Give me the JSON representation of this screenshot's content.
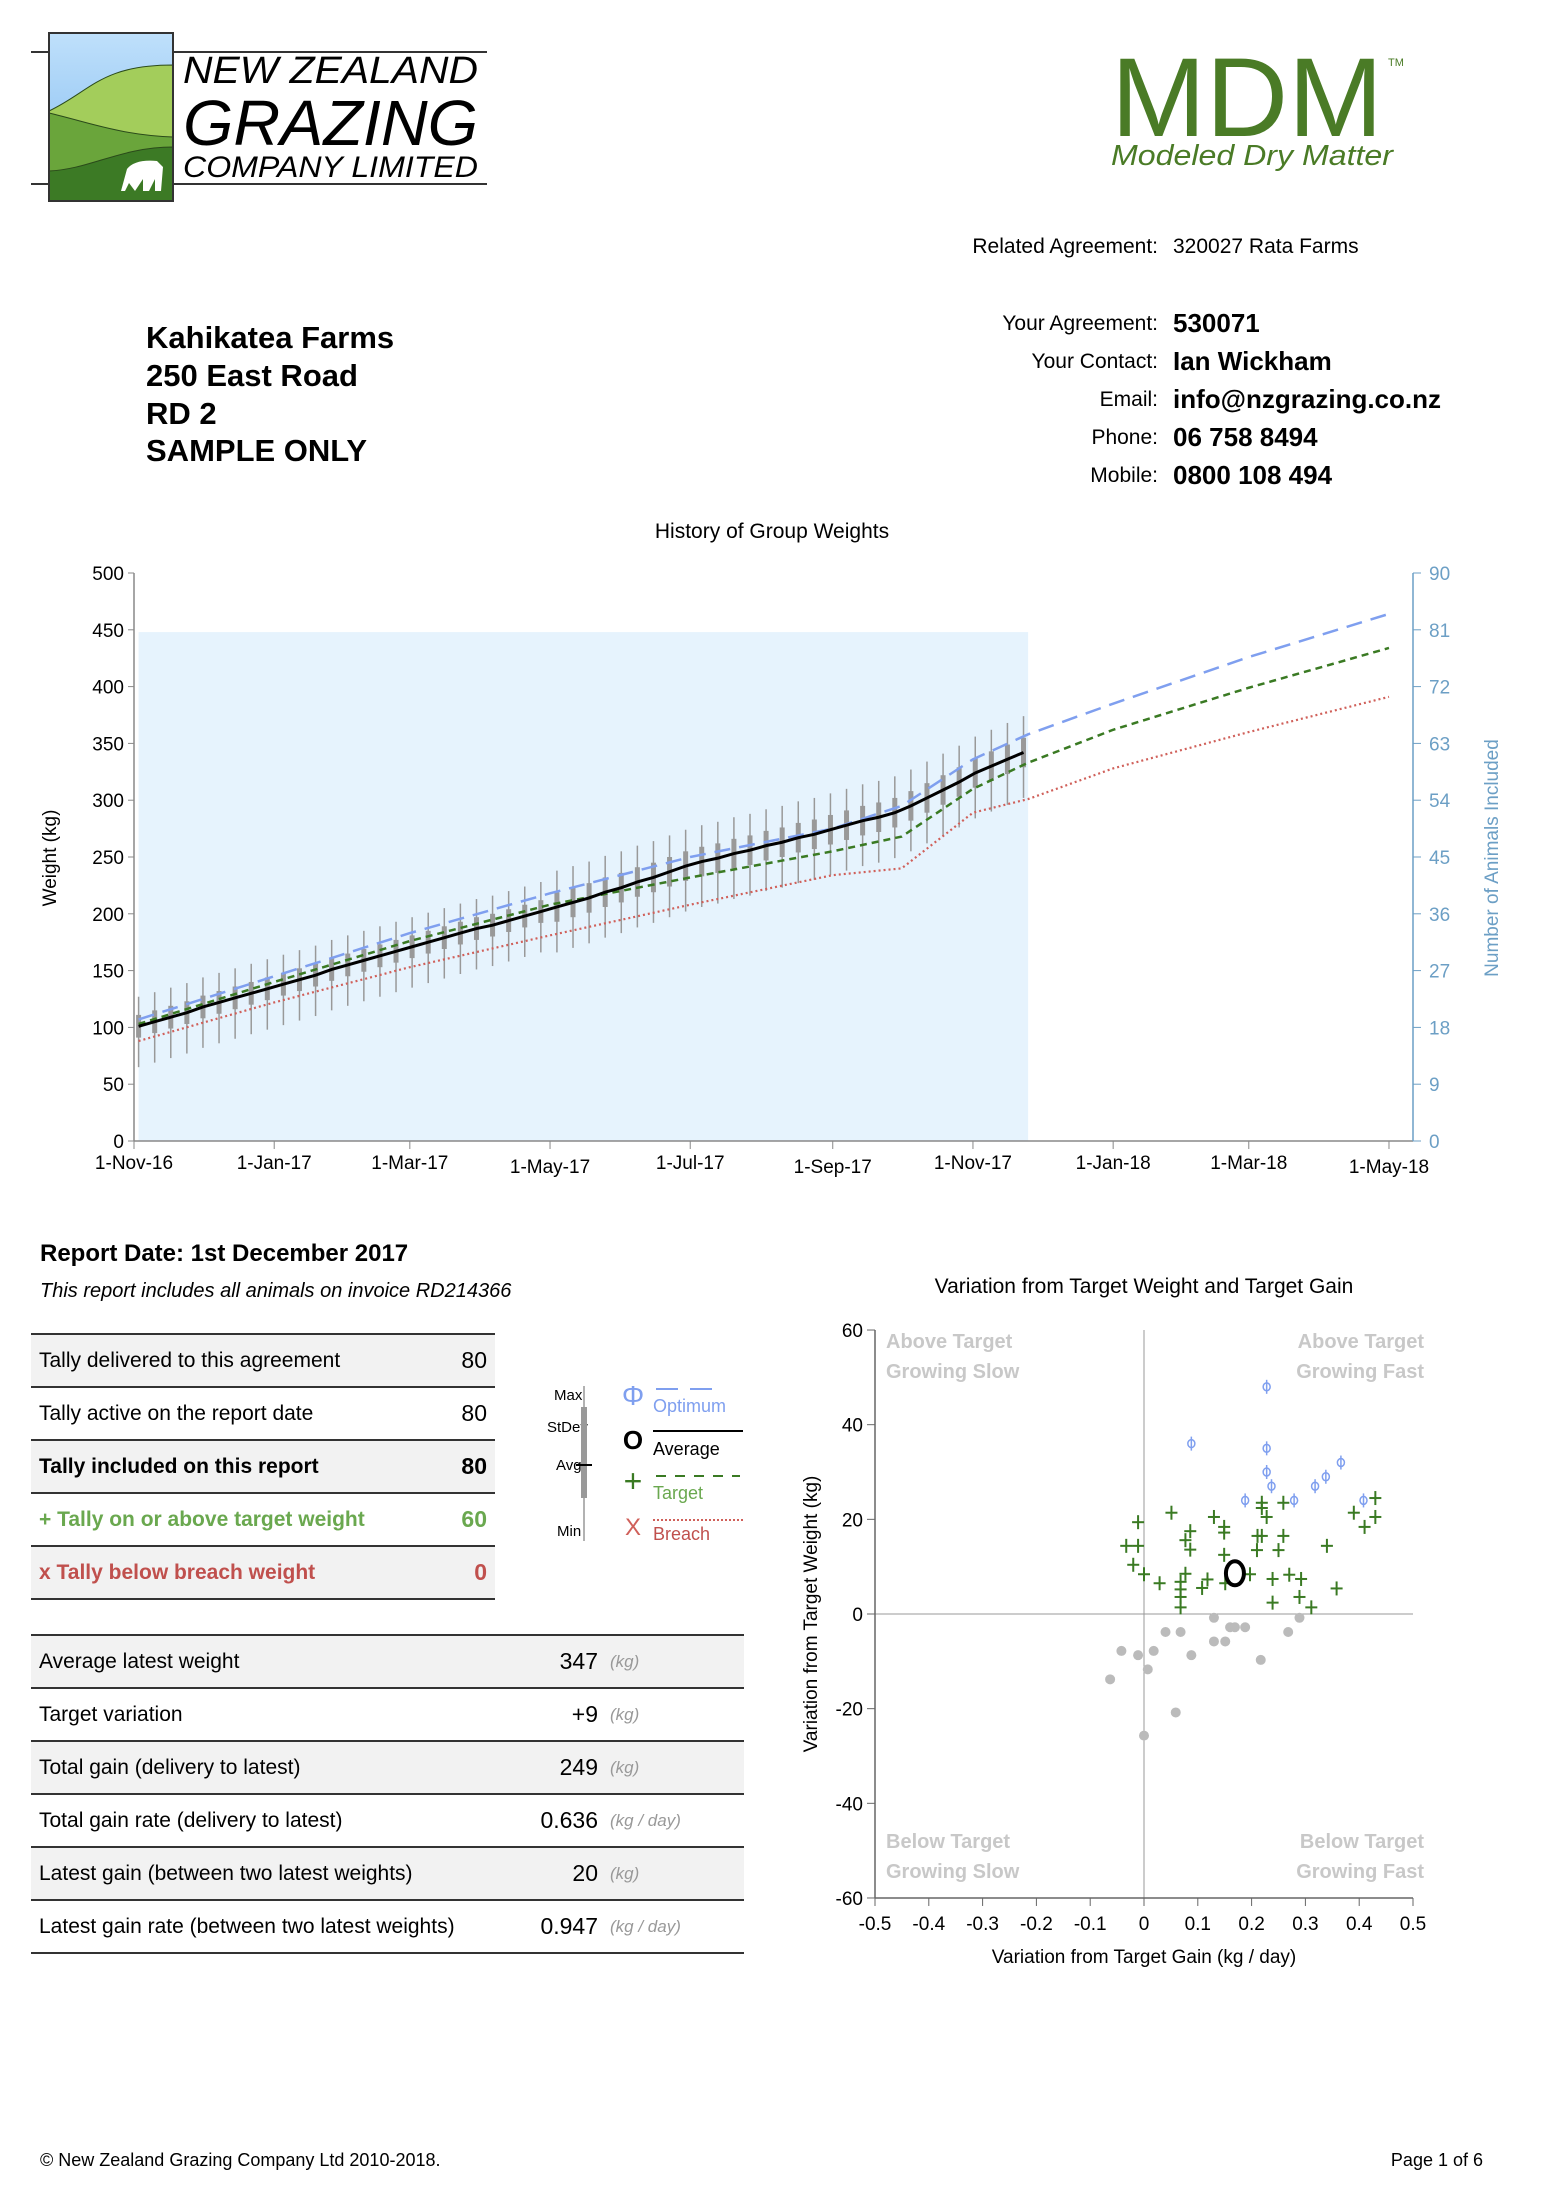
{
  "logo_nzg": {
    "line1": "NEW ZEALAND",
    "line2": "GRAZING",
    "line3": "COMPANY LIMITED"
  },
  "logo_mdm": {
    "mark": "MDM",
    "tm": "TM",
    "tagline": "Modeled Dry Matter",
    "color": "#4a7b26"
  },
  "header": {
    "related_label": "Related Agreement:",
    "related_value": "320027 Rata Farms",
    "agreement_label": "Your Agreement:",
    "agreement_value": "530071",
    "contact_label": "Your Contact:",
    "contact_value": "Ian Wickham",
    "email_label": "Email:",
    "email_value": "info@nzgrazing.co.nz",
    "phone_label": "Phone:",
    "phone_value": "06 758 8494",
    "mobile_label": "Mobile:",
    "mobile_value": "0800 108 494"
  },
  "address": [
    "Kahikatea Farms",
    "250 East Road",
    "RD 2",
    "SAMPLE ONLY"
  ],
  "report": {
    "date": "Report Date: 1st December 2017",
    "subtitle": "This report includes all animals on invoice RD214366"
  },
  "tally_table": [
    {
      "label": "Tally delivered to this agreement",
      "value": "80"
    },
    {
      "label": "Tally active on the report date",
      "value": "80"
    },
    {
      "label": "Tally included on this report",
      "value": "80"
    },
    {
      "label": "+ Tally on or above target weight",
      "value": "60"
    },
    {
      "label": "x Tally below breach weight",
      "value": "0"
    }
  ],
  "stats_table": [
    {
      "label": "Average latest weight",
      "value": "347",
      "unit": "(kg)"
    },
    {
      "label": "Target variation",
      "value": "+9",
      "unit": "(kg)"
    },
    {
      "label": "Total gain (delivery to latest)",
      "value": "249",
      "unit": "(kg)"
    },
    {
      "label": "Total gain rate (delivery to latest)",
      "value": "0.636",
      "unit": "(kg / day)"
    },
    {
      "label": "Latest gain (between two latest weights)",
      "value": "20",
      "unit": "(kg)"
    },
    {
      "label": "Latest gain rate (between two latest weights)",
      "value": "0.947",
      "unit": "(kg / day)"
    }
  ],
  "legend": {
    "box": {
      "max": "Max",
      "stdev": "StDev",
      "avg": "Avg",
      "min": "Min"
    },
    "optimum": {
      "symbol": "Φ",
      "label": "Optimum"
    },
    "average": {
      "symbol": "O",
      "label": "Average"
    },
    "target": {
      "symbol": "+",
      "label": "Target"
    },
    "breach": {
      "symbol": "X",
      "label": "Breach"
    }
  },
  "colors": {
    "optimum": "#7f9fef",
    "average": "#000000",
    "target": "#3a7a23",
    "breach": "#d0605a",
    "box": "#999999",
    "right_axis": "#6c9fc5",
    "shade": "#e6f3fd",
    "below": "#bbbbbb"
  },
  "chart_data": [
    {
      "type": "line",
      "title": "History of Group Weights",
      "ylabel": "Weight (kg)",
      "y2label": "Number of Animals Included",
      "ylim": [
        0,
        500
      ],
      "yticks": [
        "0",
        "50",
        "100",
        "150",
        "200",
        "250",
        "300",
        "350",
        "400",
        "450",
        "500"
      ],
      "y2lim": [
        0,
        90
      ],
      "y2ticks": [
        "0",
        "9",
        "18",
        "27",
        "36",
        "45",
        "54",
        "63",
        "72",
        "81",
        "90"
      ],
      "xlim": [
        "2016-11-01",
        "2018-05-11"
      ],
      "xticks": [
        {
          "date": "2016-11-01",
          "label": "1-Nov-16"
        },
        {
          "date": "2017-01-01",
          "label": "1-Jan-17"
        },
        {
          "date": "2017-03-01",
          "label": "1-Mar-17"
        },
        {
          "date": "2017-05-01",
          "label": "1-May-17"
        },
        {
          "date": "2017-07-01",
          "label": "1-Jul-17"
        },
        {
          "date": "2017-09-01",
          "label": "1-Sep-17"
        },
        {
          "date": "2017-11-01",
          "label": "1-Nov-17"
        },
        {
          "date": "2018-01-01",
          "label": "1-Jan-18"
        },
        {
          "date": "2018-03-01",
          "label": "1-Mar-18"
        },
        {
          "date": "2018-05-01",
          "label": "1-May-18"
        }
      ],
      "animals_included": {
        "from": "2016-11-03",
        "to": "2017-11-25",
        "count": 80
      },
      "weighings_columns": [
        "date",
        "min",
        "avg",
        "max",
        "stdev"
      ],
      "weighings": [
        [
          "2016-11-03",
          65,
          101,
          127,
          10
        ],
        [
          "2016-11-10",
          69,
          105,
          131,
          10
        ],
        [
          "2016-11-17",
          73,
          109,
          135,
          10
        ],
        [
          "2016-11-24",
          77,
          113,
          139,
          10
        ],
        [
          "2016-12-01",
          82,
          118,
          144,
          10
        ],
        [
          "2016-12-08",
          86,
          122,
          148,
          10
        ],
        [
          "2016-12-15",
          90,
          126,
          152,
          10
        ],
        [
          "2016-12-22",
          94,
          130,
          156,
          10
        ],
        [
          "2016-12-29",
          98,
          134,
          160,
          10
        ],
        [
          "2017-01-05",
          102,
          138,
          164,
          10
        ],
        [
          "2017-01-12",
          106,
          142,
          168,
          10
        ],
        [
          "2017-01-19",
          110,
          146,
          172,
          10
        ],
        [
          "2017-01-26",
          115,
          151,
          177,
          10
        ],
        [
          "2017-02-02",
          119,
          155,
          181,
          10
        ],
        [
          "2017-02-09",
          123,
          159,
          185,
          10
        ],
        [
          "2017-02-16",
          127,
          163,
          189,
          10
        ],
        [
          "2017-02-23",
          131,
          167,
          193,
          10
        ],
        [
          "2017-03-02",
          135,
          171,
          197,
          10
        ],
        [
          "2017-03-09",
          139,
          175,
          201,
          10
        ],
        [
          "2017-03-16",
          143,
          179,
          205,
          10
        ],
        [
          "2017-03-23",
          147,
          183,
          209,
          10
        ],
        [
          "2017-03-30",
          151,
          187,
          213,
          10
        ],
        [
          "2017-04-06",
          154,
          190,
          216,
          10
        ],
        [
          "2017-04-13",
          158,
          194,
          220,
          10
        ],
        [
          "2017-04-20",
          162,
          198,
          224,
          10
        ],
        [
          "2017-04-27",
          166,
          202,
          228,
          10
        ],
        [
          "2017-05-04",
          166,
          206,
          238,
          13
        ],
        [
          "2017-05-11",
          170,
          210,
          242,
          13
        ],
        [
          "2017-05-18",
          174,
          214,
          246,
          13
        ],
        [
          "2017-05-25",
          179,
          219,
          251,
          13
        ],
        [
          "2017-06-01",
          183,
          223,
          255,
          13
        ],
        [
          "2017-06-08",
          188,
          228,
          260,
          13
        ],
        [
          "2017-06-15",
          192,
          232,
          264,
          13
        ],
        [
          "2017-06-22",
          197,
          237,
          269,
          13
        ],
        [
          "2017-06-29",
          202,
          242,
          274,
          13
        ],
        [
          "2017-07-06",
          206,
          246,
          278,
          13
        ],
        [
          "2017-07-13",
          209,
          249,
          281,
          13
        ],
        [
          "2017-07-20",
          213,
          253,
          285,
          13
        ],
        [
          "2017-07-27",
          216,
          256,
          288,
          13
        ],
        [
          "2017-08-03",
          220,
          260,
          292,
          13
        ],
        [
          "2017-08-10",
          223,
          263,
          295,
          13
        ],
        [
          "2017-08-17",
          227,
          267,
          299,
          13
        ],
        [
          "2017-08-24",
          230,
          270,
          302,
          13
        ],
        [
          "2017-08-31",
          234,
          274,
          306,
          13
        ],
        [
          "2017-09-07",
          238,
          278,
          310,
          13
        ],
        [
          "2017-09-14",
          242,
          282,
          314,
          13
        ],
        [
          "2017-09-21",
          245,
          285,
          317,
          13
        ],
        [
          "2017-09-28",
          249,
          289,
          321,
          13
        ],
        [
          "2017-10-05",
          255,
          295,
          327,
          13
        ],
        [
          "2017-10-12",
          262,
          302,
          334,
          13
        ],
        [
          "2017-10-19",
          269,
          309,
          341,
          13
        ],
        [
          "2017-10-26",
          276,
          316,
          348,
          13
        ],
        [
          "2017-11-02",
          284,
          324,
          356,
          13
        ],
        [
          "2017-11-09",
          290,
          330,
          362,
          13
        ],
        [
          "2017-11-16",
          296,
          336,
          368,
          13
        ],
        [
          "2017-11-23",
          302,
          342,
          374,
          13
        ]
      ],
      "series": [
        {
          "name": "Optimum",
          "points": [
            [
              "2016-11-03",
              107
            ],
            [
              "2017-01-01",
              145
            ],
            [
              "2017-03-01",
              183
            ],
            [
              "2017-05-01",
              218
            ],
            [
              "2017-07-01",
              250
            ],
            [
              "2017-09-01",
              275
            ],
            [
              "2017-10-01",
              295
            ],
            [
              "2017-11-01",
              336
            ],
            [
              "2017-11-25",
              358
            ],
            [
              "2018-01-01",
              385
            ],
            [
              "2018-03-01",
              426
            ],
            [
              "2018-05-01",
              464
            ]
          ]
        },
        {
          "name": "Target",
          "points": [
            [
              "2016-11-03",
              103
            ],
            [
              "2017-01-01",
              140
            ],
            [
              "2017-03-01",
              176
            ],
            [
              "2017-05-01",
              208
            ],
            [
              "2017-07-01",
              232
            ],
            [
              "2017-09-01",
              255
            ],
            [
              "2017-10-01",
              268
            ],
            [
              "2017-11-01",
              310
            ],
            [
              "2017-11-25",
              333
            ],
            [
              "2018-01-01",
              362
            ],
            [
              "2018-03-01",
              399
            ],
            [
              "2018-05-01",
              434
            ]
          ]
        },
        {
          "name": "Breach",
          "points": [
            [
              "2016-11-03",
              88
            ],
            [
              "2017-01-01",
              122
            ],
            [
              "2017-03-01",
              153
            ],
            [
              "2017-05-01",
              181
            ],
            [
              "2017-07-01",
              208
            ],
            [
              "2017-09-01",
              234
            ],
            [
              "2017-10-01",
              240
            ],
            [
              "2017-11-01",
              289
            ],
            [
              "2017-11-25",
              301
            ],
            [
              "2018-01-01",
              328
            ],
            [
              "2018-03-01",
              360
            ],
            [
              "2018-05-01",
              391
            ]
          ]
        }
      ]
    },
    {
      "type": "scatter",
      "title": "Variation from Target Weight and Target Gain",
      "xlabel": "Variation from Target Gain (kg / day)",
      "ylabel": "Variation from Target Weight (kg)",
      "xlim": [
        -0.5,
        0.5
      ],
      "ylim": [
        -60,
        60
      ],
      "xticks": [
        "-0.5",
        "-0.4",
        "-0.3",
        "-0.2",
        "-0.1",
        "0",
        "0.1",
        "0.2",
        "0.3",
        "0.4",
        "0.5"
      ],
      "yticks": [
        "60",
        "40",
        "20",
        "0",
        "-20",
        "-40",
        "-60"
      ],
      "quadrants": {
        "top_left": [
          "Above Target",
          "Growing Slow"
        ],
        "top_right": [
          "Above Target",
          "Growing Fast"
        ],
        "bottom_left": [
          "Below Target",
          "Growing Slow"
        ],
        "bottom_right": [
          "Below Target",
          "Growing Fast"
        ]
      },
      "optimum_points": [
        [
          0.228,
          48
        ],
        [
          0.088,
          36
        ],
        [
          0.228,
          35
        ],
        [
          0.228,
          30
        ],
        [
          0.237,
          27
        ],
        [
          0.366,
          32
        ],
        [
          0.338,
          29
        ],
        [
          0.318,
          27
        ],
        [
          0.188,
          24
        ],
        [
          0.279,
          24
        ],
        [
          0.408,
          24
        ]
      ],
      "target_points": [
        [
          -0.011,
          19.4
        ],
        [
          0.051,
          21.4
        ],
        [
          -0.033,
          14.4
        ],
        [
          -0.011,
          14.4
        ],
        [
          -0.02,
          10.4
        ],
        [
          0,
          8.4
        ],
        [
          0.029,
          6.5
        ],
        [
          0.077,
          8.5
        ],
        [
          0.068,
          6.8
        ],
        [
          0.068,
          5.2
        ],
        [
          0.068,
          3.6
        ],
        [
          0.068,
          1.4
        ],
        [
          0.086,
          17.5
        ],
        [
          0.077,
          15.6
        ],
        [
          0.086,
          13.6
        ],
        [
          0.13,
          20.5
        ],
        [
          0.149,
          18.4
        ],
        [
          0.149,
          17.2
        ],
        [
          0.149,
          12.5
        ],
        [
          0.108,
          5.5
        ],
        [
          0.118,
          7.3
        ],
        [
          0.151,
          6.5
        ],
        [
          0.197,
          8.4
        ],
        [
          0.219,
          23.5
        ],
        [
          0.219,
          22.4
        ],
        [
          0.228,
          20.5
        ],
        [
          0.259,
          23.5
        ],
        [
          0.211,
          16.5
        ],
        [
          0.219,
          16.5
        ],
        [
          0.259,
          16.5
        ],
        [
          0.21,
          13.5
        ],
        [
          0.25,
          13.5
        ],
        [
          0.239,
          7.4
        ],
        [
          0.27,
          8.3
        ],
        [
          0.292,
          7.4
        ],
        [
          0.239,
          2.4
        ],
        [
          0.289,
          3.6
        ],
        [
          0.311,
          1.4
        ],
        [
          0.34,
          14.4
        ],
        [
          0.358,
          5.4
        ],
        [
          0.39,
          21.4
        ],
        [
          0.43,
          24.5
        ],
        [
          0.43,
          20.5
        ],
        [
          0.41,
          18.4
        ]
      ],
      "below_points": [
        [
          0.13,
          -0.8
        ],
        [
          0.16,
          -2.8
        ],
        [
          0.169,
          -2.8
        ],
        [
          0.188,
          -2.8
        ],
        [
          0.04,
          -3.8
        ],
        [
          0.068,
          -3.8
        ],
        [
          0.268,
          -3.8
        ],
        [
          0.289,
          -0.8
        ],
        [
          0.13,
          -5.8
        ],
        [
          0.151,
          -5.8
        ],
        [
          -0.042,
          -7.8
        ],
        [
          -0.011,
          -8.7
        ],
        [
          0.018,
          -7.8
        ],
        [
          0.088,
          -8.7
        ],
        [
          0.217,
          -9.7
        ],
        [
          0.007,
          -11.7
        ],
        [
          -0.063,
          -13.8
        ],
        [
          0.059,
          -20.8
        ],
        [
          0,
          -25.7
        ]
      ],
      "average_point": [
        0.169,
        8.6
      ]
    }
  ],
  "footer": {
    "copyright": "© New Zealand Grazing Company Ltd 2010-2018.",
    "page": "Page 1 of 6"
  }
}
